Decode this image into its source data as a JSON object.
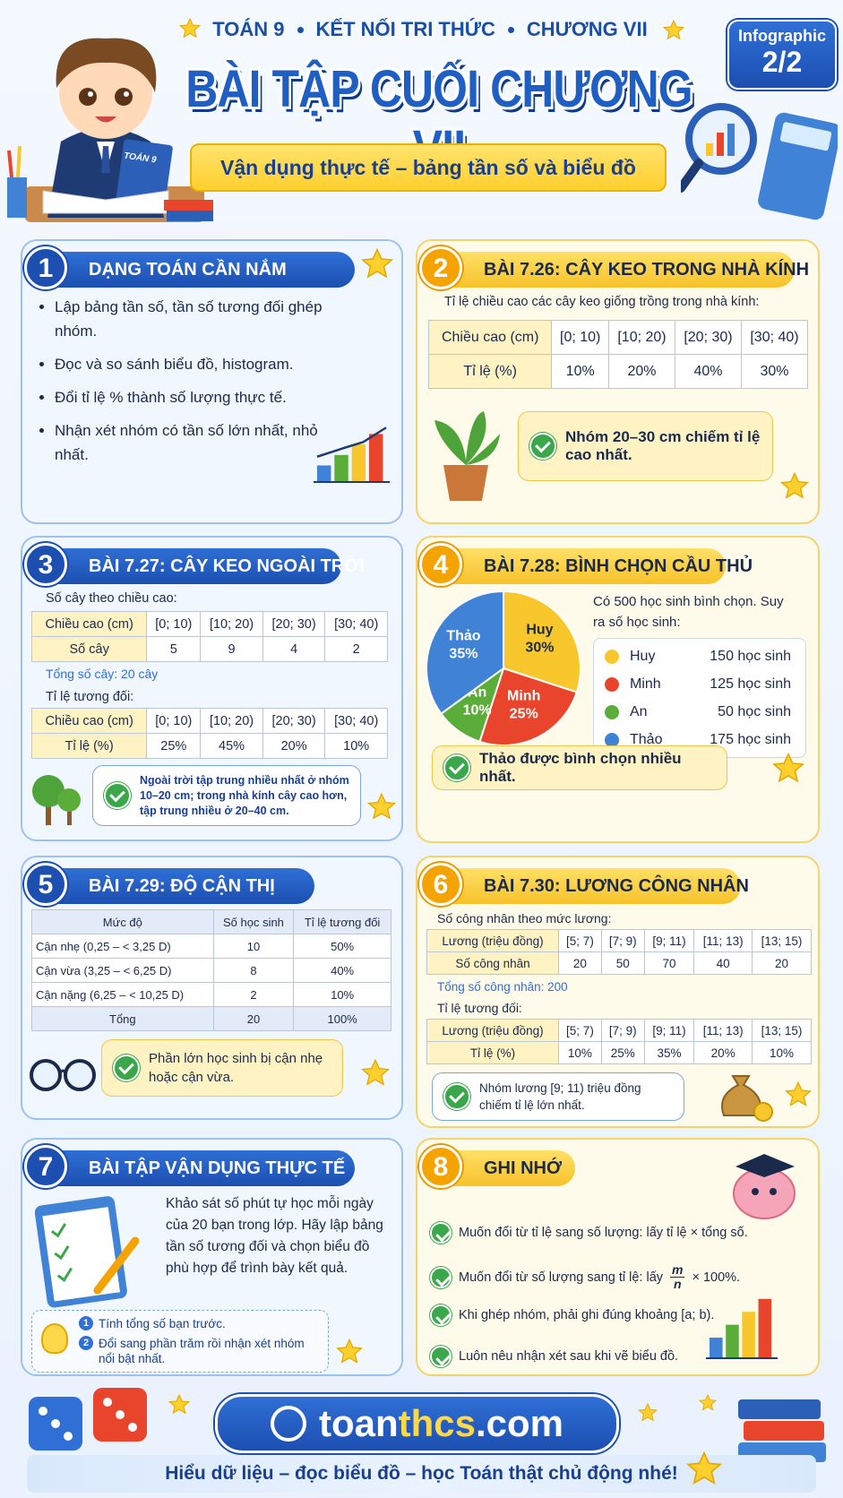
{
  "header": {
    "top_line": [
      "TOÁN 9",
      "KẾT NỐI TRI THỨC",
      "CHƯƠNG VII"
    ],
    "badge": "Infographic",
    "badge_page": "2/2",
    "title": "BÀI TẬP CUỐI CHƯƠNG VII",
    "subtitle": "Vận dụng thực tế – bảng tần số và biểu đồ",
    "book_label": "TOÁN 9"
  },
  "sections": [
    {
      "number": "1",
      "title": "DẠNG TOÁN CẦN NẮM",
      "bullets": [
        "Lập bảng tần số, tần số tương đối ghép nhóm.",
        "Đọc và so sánh biểu đồ, histogram.",
        "Đổi tỉ lệ % thành số lượng thực tế.",
        "Nhận xét nhóm có tần số lớn nhất, nhỏ nhất."
      ]
    },
    {
      "number": "2",
      "title": "BÀI 7.26: CÂY KEO TRONG NHÀ KÍNH",
      "intro": "Tỉ lệ chiều cao các cây keo giống trồng trong nhà kính:",
      "table": [
        [
          "Chiều cao (cm)",
          "[0; 10)",
          "[10; 20)",
          "[20; 30)",
          "[30; 40)"
        ],
        [
          "Tỉ lệ (%)",
          "10%",
          "20%",
          "40%",
          "30%"
        ]
      ],
      "note": "Nhóm 20–30 cm chiếm tỉ lệ cao nhất."
    },
    {
      "number": "3",
      "title": "BÀI 7.27: CÂY KEO NGOÀI TRỜI",
      "intro": "Số cây theo chiều cao:",
      "table": [
        [
          "Chiều cao (cm)",
          "[0; 10)",
          "[10; 20)",
          "[20; 30)",
          "[30; 40)"
        ],
        [
          "Số cây",
          "5",
          "9",
          "4",
          "2"
        ]
      ],
      "total": "Tổng số cây: 20 cây",
      "intro2": "Tỉ lệ tương đối:",
      "table2": [
        [
          "Chiều cao (cm)",
          "[0; 10)",
          "[10; 20)",
          "[20; 30)",
          "[30; 40)"
        ],
        [
          "Tỉ lệ (%)",
          "25%",
          "45%",
          "20%",
          "10%"
        ]
      ],
      "note": "Ngoài trời tập trung nhiều nhất ở nhóm 10–20 cm; trong nhà kính cây cao hơn, tập trung nhiều ở 20–40 cm."
    },
    {
      "number": "4",
      "title": "BÀI 7.28: BÌNH CHỌN CẦU THỦ",
      "pie": {
        "names": [
          "Huy",
          "Minh",
          "An",
          "Thảo"
        ],
        "values": [
          30,
          25,
          10,
          35
        ],
        "value_labels": [
          "30%",
          "25%",
          "10%",
          "35%"
        ],
        "colors": [
          "#f7c72b",
          "#e8452c",
          "#5bad3a",
          "#3f82d6"
        ]
      },
      "intro": "Có 500 học sinh bình chọn. Suy ra số học sinh:",
      "students": [
        "150 học sinh",
        "125 học sinh",
        "50 học sinh",
        "175 học sinh"
      ],
      "note": "Thảo được bình chọn nhiều nhất."
    },
    {
      "number": "5",
      "title": "BÀI 7.29: ĐỘ CẬN THỊ",
      "table": [
        [
          "Mức độ",
          "Số học sinh",
          "Tỉ lệ tương đối"
        ],
        [
          "Cận nhẹ (0,25 – < 3,25 D)",
          "10",
          "50%"
        ],
        [
          "Cận vừa (3,25 – < 6,25 D)",
          "8",
          "40%"
        ],
        [
          "Cận nặng (6,25 – < 10,25 D)",
          "2",
          "10%"
        ],
        [
          "Tổng",
          "20",
          "100%"
        ]
      ],
      "note": "Phần lớn học sinh bị cận nhẹ hoặc cận vừa."
    },
    {
      "number": "6",
      "title": "BÀI 7.30: LƯƠNG CÔNG NHÂN",
      "intro": "Số công nhân theo mức lương:",
      "table": [
        [
          "Lương (triệu đồng)",
          "[5; 7)",
          "[7; 9)",
          "[9; 11)",
          "[11; 13)",
          "[13; 15)"
        ],
        [
          "Số công nhân",
          "20",
          "50",
          "70",
          "40",
          "20"
        ]
      ],
      "total": "Tổng số công nhân: 200",
      "intro2": "Tỉ lệ tương đối:",
      "table2": [
        [
          "Lương (triệu đồng)",
          "[5; 7)",
          "[7; 9)",
          "[9; 11)",
          "[11; 13)",
          "[13; 15)"
        ],
        [
          "Tỉ lệ (%)",
          "10%",
          "25%",
          "35%",
          "20%",
          "10%"
        ]
      ],
      "note": "Nhóm lương [9; 11) triệu đồng chiếm tỉ lệ lớn nhất."
    },
    {
      "number": "7",
      "title": "BÀI TẬP VẬN DỤNG THỰC TẾ",
      "text": "Khảo sát số phút tự học mỗi ngày của 20 bạn trong lớp. Hãy lập bảng tần số tương đối và chọn biểu đồ phù hợp để trình bày kết quả.",
      "hints": [
        {
          "number": "1",
          "text": "Tính tổng số bạn trước."
        },
        {
          "number": "2",
          "text": "Đổi sang phần trăm rồi nhận xét nhóm nổi bật nhất."
        }
      ]
    },
    {
      "number": "8",
      "title": "GHI NHỚ",
      "items": [
        "Muốn đổi từ tỉ lệ sang số lượng: lấy tỉ lệ × tổng số.",
        {
          "before": "Muốn đổi từ số lượng sang tỉ lệ: lấy",
          "numerator": "m",
          "denominator": "n",
          "after": "× 100%."
        },
        "Khi ghép nhóm, phải ghi đúng khoảng [a; b).",
        "Luôn nêu nhận xét sau khi vẽ biểu đồ."
      ]
    }
  ],
  "footer": {
    "brand": [
      "toan",
      "thcs",
      ".com"
    ],
    "tagline": "Hiểu dữ liệu – đọc biểu đồ – học Toán thật chủ động nhé!"
  }
}
